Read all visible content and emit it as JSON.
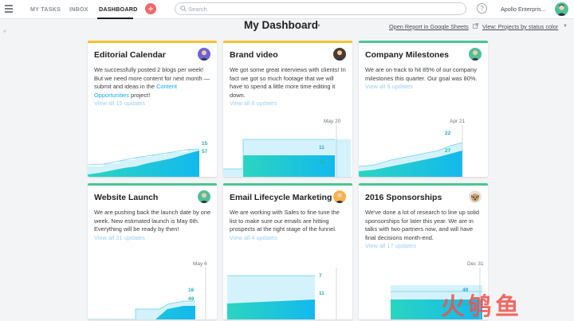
{
  "nav": {
    "tabs": [
      {
        "label": "MY TASKS",
        "active": false
      },
      {
        "label": "INBOX",
        "active": false
      },
      {
        "label": "DASHBOARD",
        "active": true
      }
    ],
    "add_label": "+",
    "search_placeholder": "Search",
    "help_label": "?",
    "workspace": "Apollo Enterpris..."
  },
  "header": {
    "title": "My Dashboard",
    "report_link": "Open Report in Google Sheets",
    "view_select": "View: Projects by status color",
    "collapse_label": "«"
  },
  "colors": {
    "yellow": "#f8c02c",
    "green": "#4cc594",
    "chart_light": "#d4f2fb",
    "chart_line": "#6fcfe8",
    "chart_fill_a": "#2bd5c0",
    "chart_fill_b": "#13b9ee",
    "value_green": "#1eb898",
    "value_teal": "#27a6cb"
  },
  "cards": [
    {
      "title": "Editorial Calendar",
      "status_color": "yellow",
      "avatar_icon": "person-avatar-icon",
      "text_before": "We successfully posted 2 blogs per week! But we need more content for next month —submit and ideas in the ",
      "text_highlight": "Content Opportunities",
      "text_after": " project!",
      "link": "View all 15 updates",
      "date_label": "",
      "total": 15,
      "done": 57
    },
    {
      "title": "Brand video",
      "status_color": "yellow",
      "avatar_icon": "person-avatar-icon",
      "text_before": "We got some great interviews with clients! In fact we got so much footage that we will have to spend a little more time editing it down.",
      "text_highlight": "",
      "text_after": "",
      "link": "View all 6 updates",
      "date_label": "May 20",
      "total": 11,
      "done": 15
    },
    {
      "title": "Company Milestones",
      "status_color": "green",
      "avatar_icon": "person-avatar-icon",
      "text_before": "We are on track to hit 85% of our company milestones this quarter. Our goal was 80%.",
      "text_highlight": "",
      "text_after": "",
      "link": "View all 9 updates",
      "date_label": "Apr 21",
      "total": 22,
      "done": 27
    },
    {
      "title": "Website Launch",
      "status_color": "green",
      "avatar_icon": "person-avatar-icon",
      "text_before": "We are pushing back the launch date by one week. New estimated launch is May 6th. Everything will be ready by then!",
      "text_highlight": "",
      "text_after": "",
      "link": "View all 21 updates",
      "date_label": "May 6",
      "total": 16,
      "done": 49
    },
    {
      "title": "Email Lifecycle Marketing",
      "status_color": "green",
      "avatar_icon": "person-avatar-icon",
      "text_before": "We are working with Sales to fine tune the list to make sure our emails are hitting prospects at the right stage of the funnel.",
      "text_highlight": "",
      "text_after": "",
      "link": "View all 4 updates",
      "date_label": "",
      "total": 7,
      "done": 11
    },
    {
      "title": "2016 Sponsorships",
      "status_color": "green",
      "avatar_icon": "dog-avatar-icon",
      "text_before": "We've done a lot of research to line up solid sponsorships for later this year. We are in talks with two partners now, and will have final decisions month-end.",
      "text_highlight": "",
      "text_after": "",
      "link": "View all 17 updates",
      "date_label": "Dec 31",
      "total": 49,
      "done": 76
    }
  ],
  "watermark": "火鸲鱼"
}
